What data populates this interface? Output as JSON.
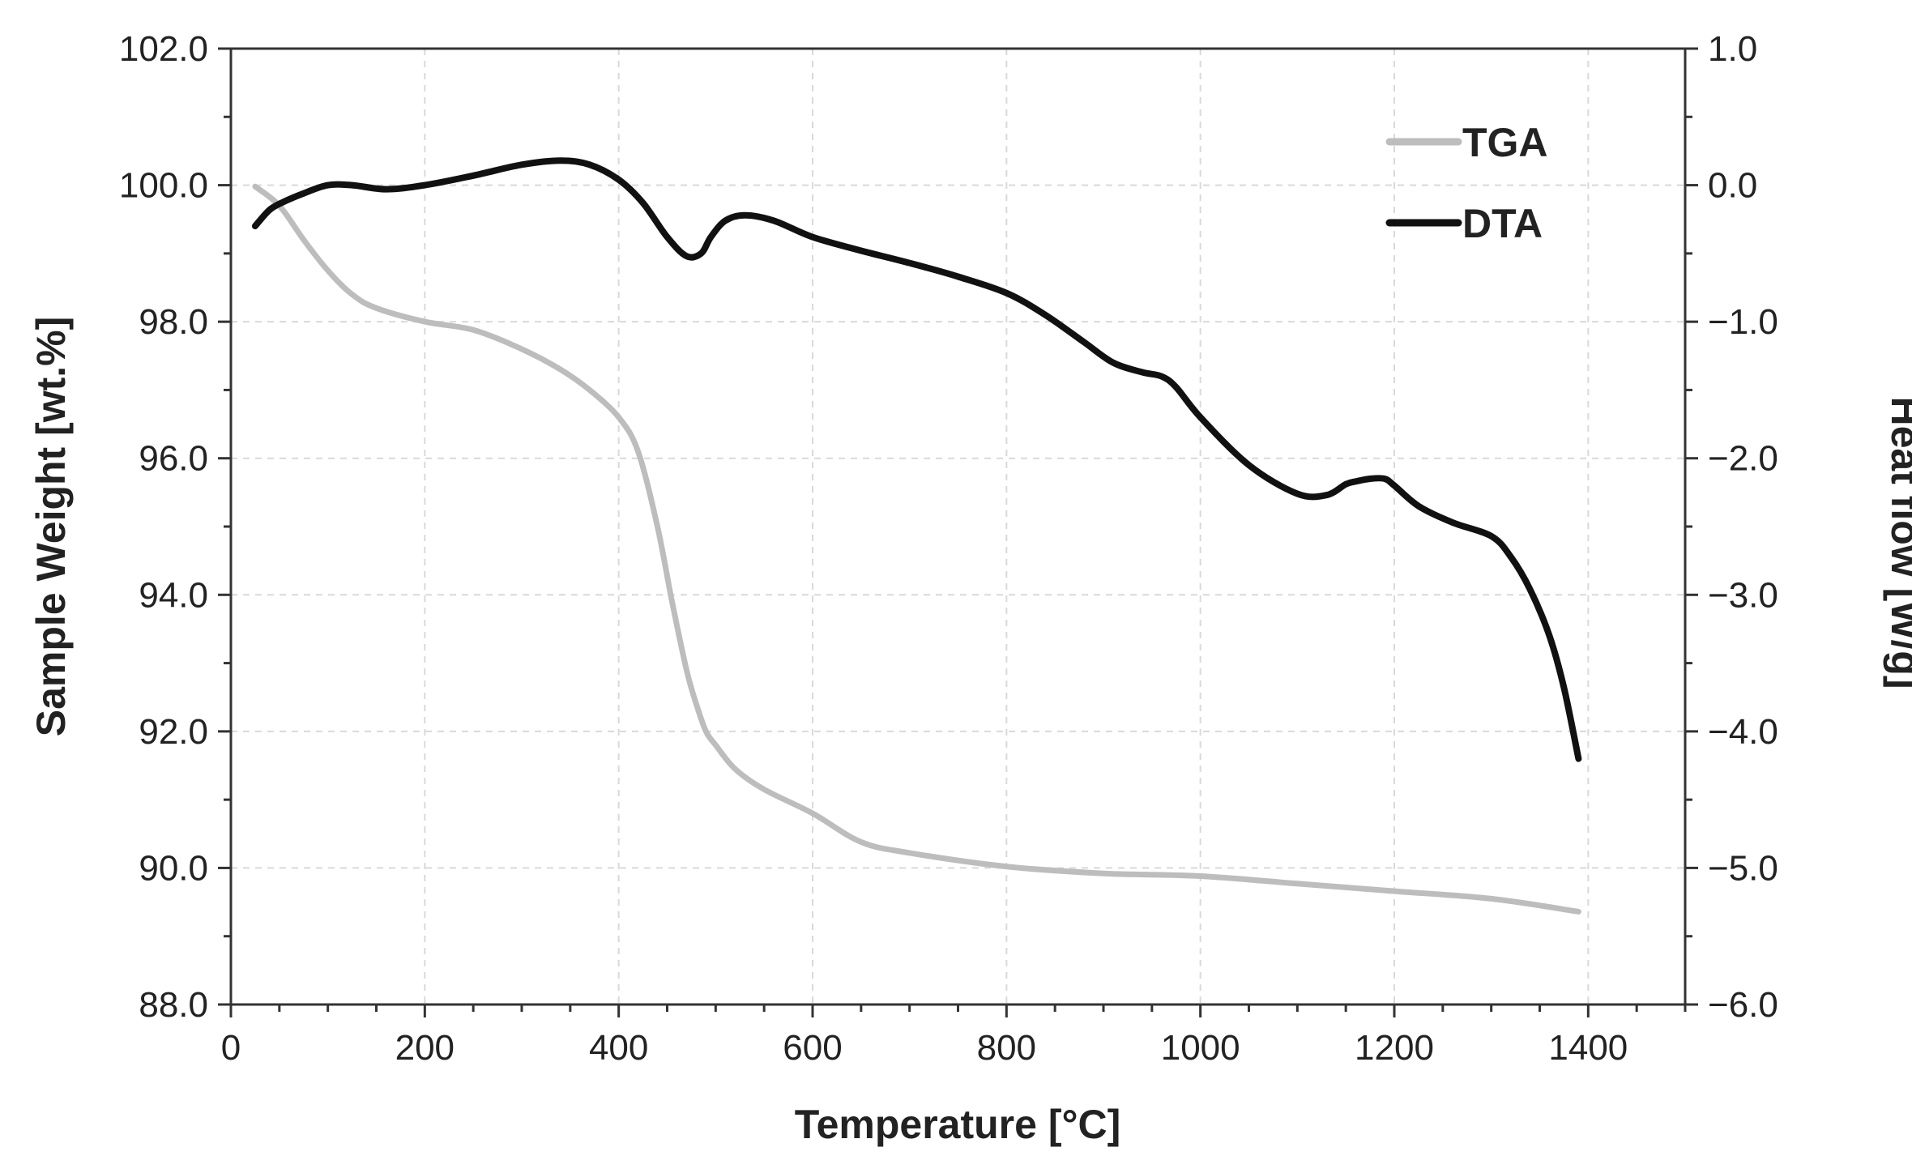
{
  "chart_data": {
    "type": "line",
    "title": "",
    "xlabel": "Temperature [°C]",
    "ylabel": "Sample Weight [wt.%]",
    "y2label": "Heat flow [W/g]",
    "xlim": [
      0,
      1500
    ],
    "ylim": [
      88,
      102
    ],
    "y2lim": [
      -6,
      1
    ],
    "x_ticks": [
      0,
      200,
      400,
      600,
      800,
      1000,
      1200,
      1400
    ],
    "x_tick_labels": [
      "0",
      "200",
      "400",
      "600",
      "800",
      "1000",
      "1200",
      "1400"
    ],
    "y_ticks": [
      88,
      90,
      92,
      94,
      96,
      98,
      100,
      102
    ],
    "y_tick_labels": [
      "88.0",
      "90.0",
      "92.0",
      "94.0",
      "96.0",
      "98.0",
      "100.0",
      "102.0"
    ],
    "y2_ticks": [
      -6,
      -5,
      -4,
      -3,
      -2,
      -1,
      0,
      1
    ],
    "y2_tick_labels": [
      "−6.0",
      "−5.0",
      "−4.0",
      "−3.0",
      "−2.0",
      "−1.0",
      "0.0",
      "1.0"
    ],
    "grid": true,
    "legend_position": "top-right",
    "series": [
      {
        "name": "TGA",
        "axis": "left",
        "color": "#bdbdbd",
        "x": [
          25,
          50,
          75,
          100,
          125,
          150,
          200,
          250,
          300,
          340,
          370,
          400,
          420,
          440,
          455,
          470,
          480,
          490,
          500,
          520,
          550,
          600,
          650,
          700,
          800,
          900,
          1000,
          1100,
          1200,
          1300,
          1390
        ],
        "y": [
          99.98,
          99.7,
          99.2,
          98.75,
          98.4,
          98.2,
          98.0,
          97.88,
          97.6,
          97.3,
          97.0,
          96.6,
          96.1,
          95.0,
          93.9,
          92.9,
          92.4,
          92.0,
          91.8,
          91.45,
          91.15,
          90.8,
          90.38,
          90.22,
          90.02,
          89.92,
          89.88,
          89.77,
          89.66,
          89.55,
          89.36
        ]
      },
      {
        "name": "DTA",
        "axis": "right",
        "color": "#111111",
        "x": [
          25,
          40,
          55,
          75,
          100,
          125,
          160,
          200,
          250,
          300,
          340,
          370,
          400,
          425,
          450,
          470,
          485,
          495,
          510,
          530,
          560,
          600,
          650,
          700,
          750,
          800,
          840,
          880,
          910,
          940,
          960,
          975,
          1000,
          1050,
          1100,
          1130,
          1150,
          1160,
          1175,
          1190,
          1200,
          1225,
          1260,
          1300,
          1320,
          1340,
          1360,
          1375,
          1390
        ],
        "y": [
          -0.3,
          -0.18,
          -0.12,
          -0.06,
          0.0,
          0.0,
          -0.03,
          0.0,
          0.07,
          0.15,
          0.18,
          0.15,
          0.04,
          -0.13,
          -0.38,
          -0.52,
          -0.5,
          -0.38,
          -0.26,
          -0.22,
          -0.26,
          -0.38,
          -0.48,
          -0.57,
          -0.67,
          -0.79,
          -0.95,
          -1.15,
          -1.3,
          -1.37,
          -1.4,
          -1.48,
          -1.7,
          -2.05,
          -2.26,
          -2.27,
          -2.19,
          -2.17,
          -2.15,
          -2.15,
          -2.2,
          -2.35,
          -2.47,
          -2.57,
          -2.72,
          -2.96,
          -3.3,
          -3.68,
          -4.2
        ]
      }
    ],
    "legend": [
      {
        "name": "TGA",
        "color": "#bdbdbd"
      },
      {
        "name": "DTA",
        "color": "#111111"
      }
    ]
  }
}
